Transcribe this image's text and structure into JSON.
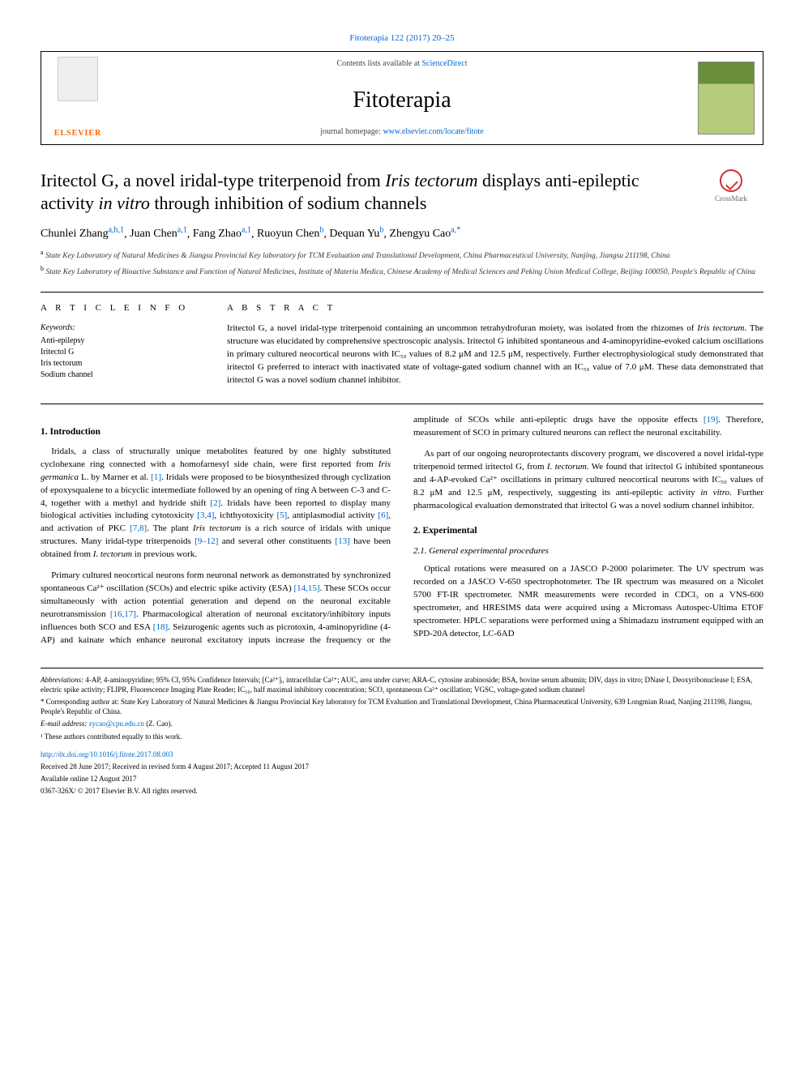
{
  "journal_ref": "Fitoterapia 122 (2017) 20–25",
  "contents_text": "Contents lists available at ",
  "contents_link": "ScienceDirect",
  "journal_name": "Fitoterapia",
  "homepage_label": "journal homepage: ",
  "homepage_url": "www.elsevier.com/locate/fitote",
  "elsevier": "ELSEVIER",
  "crossmark": "CrossMark",
  "title_part1": "Iritectol G, a novel iridal-type triterpenoid from ",
  "title_italic": "Iris tectorum",
  "title_part2": " displays anti-epileptic activity ",
  "title_italic2": "in vitro",
  "title_part3": " through inhibition of sodium channels",
  "authors": [
    {
      "name": "Chunlei Zhang",
      "sup": "a,b,1"
    },
    {
      "name": "Juan Chen",
      "sup": "a,1"
    },
    {
      "name": "Fang Zhao",
      "sup": "a,1"
    },
    {
      "name": "Ruoyun Chen",
      "sup": "b"
    },
    {
      "name": "Dequan Yu",
      "sup": "b"
    },
    {
      "name": "Zhengyu Cao",
      "sup": "a,*"
    }
  ],
  "affiliations": [
    {
      "sup": "a",
      "text": "State Key Laboratory of Natural Medicines & Jiangsu Provincial Key laboratory for TCM Evaluation and Translational Development, China Pharmaceutical University, Nanjing, Jiangsu 211198, China"
    },
    {
      "sup": "b",
      "text": "State Key Laboratory of Bioactive Substance and Function of Natural Medicines, Institute of Materia Medica, Chinese Academy of Medical Sciences and Peking Union Medical College, Beijing 100050, People's Republic of China"
    }
  ],
  "article_info_head": "A R T I C L E   I N F O",
  "abstract_head": "A B S T R A C T",
  "keywords_label": "Keywords:",
  "keywords": [
    "Anti-epilepsy",
    "Iritectol G",
    "Iris tectorum",
    "Sodium channel"
  ],
  "abstract": "Iritectol G, a novel iridal-type triterpenoid containing an uncommon tetrahydrofuran moiety, was isolated from the rhizomes of Iris tectorum. The structure was elucidated by comprehensive spectroscopic analysis. Iritectol G inhibited spontaneous and 4-aminopyridine-evoked calcium oscillations in primary cultured neocortical neurons with IC₅₀ values of 8.2 μM and 12.5 μM, respectively. Further electrophysiological study demonstrated that iritectol G preferred to interact with inactivated state of voltage-gated sodium channel with an IC₅₀ value of 7.0 μM. These data demonstrated that iritectol G was a novel sodium channel inhibitor.",
  "sections": {
    "intro_head": "1. Introduction",
    "intro_p1": "Iridals, a class of structurally unique metabolites featured by one highly substituted cyclohexane ring connected with a homofarnesyl side chain, were first reported from Iris germanica L. by Marner et al. [1]. Iridals were proposed to be biosynthesized through cyclization of epoxysqualene to a bicyclic intermediate followed by an opening of ring A between C-3 and C-4, together with a methyl and hydride shift [2]. Iridals have been reported to display many biological activities including cytotoxicity [3,4], ichthyotoxicity [5], antiplasmodial activity [6], and activation of PKC [7,8]. The plant Iris tectorum is a rich source of iridals with unique structures. Many iridal-type triterpenoids [9–12] and several other constituents [13] have been obtained from I. tectorum in previous work.",
    "intro_p2": "Primary cultured neocortical neurons form neuronal network as demonstrated by synchronized spontaneous Ca²⁺ oscillation (SCOs) and electric spike activity (ESA) [14,15]. These SCOs occur simultaneously with action potential generation and depend on the neuronal excitable neurotransmission [16,17]. Pharmacological alteration of neuronal excitatory/inhibitory inputs influences both SCO and ESA [18]. Seizurogenic agents such as picrotoxin, 4-aminopyridine (4-AP) and kainate which enhance neuronal excitatory inputs increase the frequency or the amplitude of SCOs while anti-epileptic drugs have the opposite effects [19]. Therefore, measurement of SCO in primary cultured neurons can reflect the neuronal excitability.",
    "intro_p3": "As part of our ongoing neuroprotectants discovery program, we discovered a novel iridal-type triterpenoid termed iritectol G, from I. tectorum. We found that iritectol G inhibited spontaneous and 4-AP-evoked Ca²⁺ oscillations in primary cultured neocortical neurons with IC₅₀ values of 8.2 μM and 12.5 μM, respectively, suggesting its anti-epileptic activity in vitro. Further pharmacological evaluation demonstrated that iritectol G was a novel sodium channel inhibitor.",
    "exp_head": "2. Experimental",
    "exp_sub": "2.1. General experimental procedures",
    "exp_p1": "Optical rotations were measured on a JASCO P-2000 polarimeter. The UV spectrum was recorded on a JASCO V-650 spectrophotometer. The IR spectrum was measured on a Nicolet 5700 FT-IR spectrometer. NMR measurements were recorded in CDCl₃ on a VNS-600 spectrometer, and HRESIMS data were acquired using a Micromass Autospec-Ultima ETOF spectrometer. HPLC separations were performed using a Shimadazu instrument equipped with an SPD-20A detector, LC-6AD"
  },
  "footer": {
    "abbrev_label": "Abbreviations:",
    "abbrev": "4-AP, 4-aminopyridine; 95% CI, 95% Confidence Intervals; [Ca²⁺]ᵢ, intracellular Ca²⁺; AUC, area under curve; ARA-C, cytosine arabinoside; BSA, bovine serum albumin; DIV, days in vitro; DNase I, Deoxyribonuclease I; ESA, electric spike activity; FLIPR, Fluorescence Imaging Plate Reader; IC₅₀, half maximal inhibitory concentration; SCO, spontaneous Ca²⁺ oscillation; VGSC, voltage-gated sodium channel",
    "corr_label": "* Corresponding author at:",
    "corr": "State Key Laboratory of Natural Medicines & Jiangsu Provincial Key laboratory for TCM Evaluation and Translational Development, China Pharmaceutical University, 639 Longmian Road, Nanjing 211198, Jiangsu, People's Republic of China.",
    "email_label": "E-mail address:",
    "email": "zycao@cpu.edu.cn",
    "email_who": "(Z. Cao).",
    "equal": "¹ These authors contributed equally to this work.",
    "doi": "http://dx.doi.org/10.1016/j.fitote.2017.08.003",
    "received": "Received 28 June 2017; Received in revised form 4 August 2017; Accepted 11 August 2017",
    "available": "Available online 12 August 2017",
    "copyright": "0367-326X/ © 2017 Elsevier B.V. All rights reserved."
  },
  "colors": {
    "link": "#0066cc",
    "elsevier_orange": "#ff6600"
  }
}
